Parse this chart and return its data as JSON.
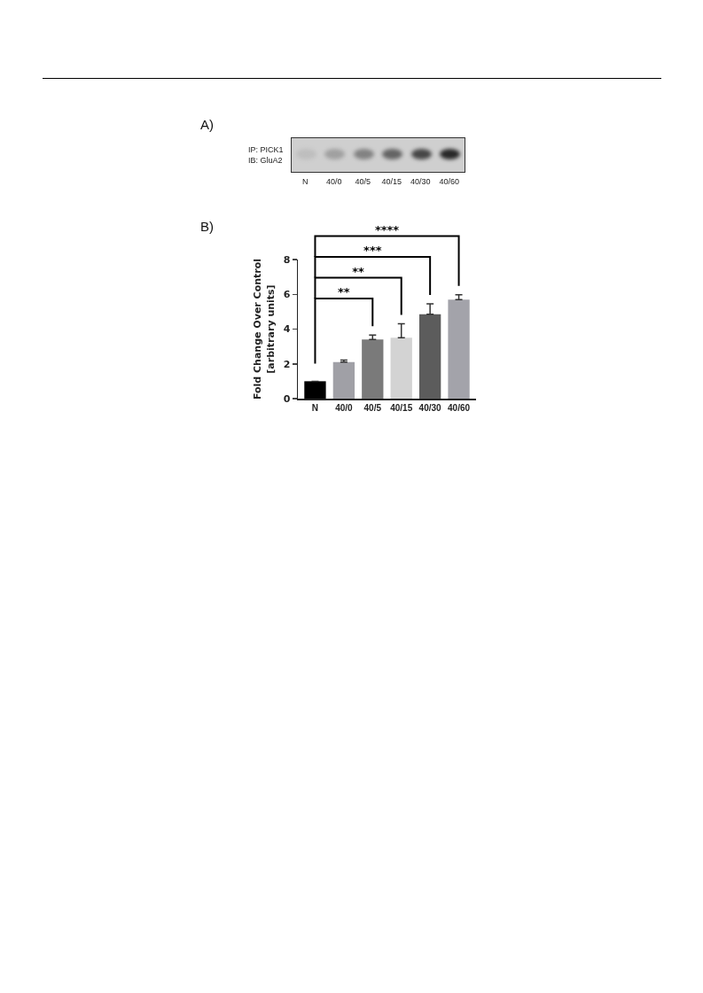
{
  "chart_data": [
    {
      "type": "other",
      "title": "A)",
      "annotations": [
        "IP: PICK1",
        "IB: GluA2"
      ],
      "categories": [
        "N",
        "40/0",
        "40/5",
        "40/15",
        "40/30",
        "40/60"
      ]
    },
    {
      "type": "bar",
      "title": "B)",
      "ylabel": "Fold Change Over Control\n[arbitrary units]",
      "categories": [
        "N",
        "40/0",
        "40/5",
        "40/15",
        "40/30",
        "40/60"
      ],
      "values": [
        1.0,
        2.1,
        3.4,
        3.5,
        4.85,
        5.7
      ],
      "colors": [
        "#000000",
        "#a0a0a6",
        "#7a7a7a",
        "#d3d3d3",
        "#5c5c5c",
        "#a3a3aa"
      ],
      "errors": [
        null,
        [
          2.1,
          2.22
        ],
        [
          3.4,
          3.65
        ],
        [
          3.5,
          4.3
        ],
        [
          4.85,
          5.45
        ],
        [
          5.7,
          5.97
        ]
      ],
      "ylim": [
        0,
        8
      ],
      "yticks": [
        0,
        2,
        4,
        6,
        8
      ],
      "grid": false,
      "legend": false,
      "annotations": [
        "**",
        "**",
        "***",
        "****"
      ]
    }
  ]
}
